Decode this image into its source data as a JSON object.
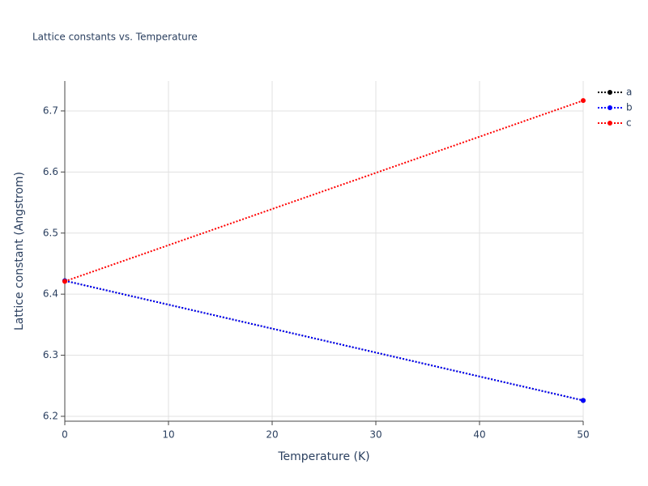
{
  "chart_data": {
    "type": "line",
    "title": "Lattice constants vs. Temperature",
    "x_label": "Temperature (K)",
    "y_label": "Lattice constant (Angstrom)",
    "x": [
      0,
      50
    ],
    "series": [
      {
        "name": "a",
        "color": "#000000",
        "values": [
          6.422,
          6.226
        ]
      },
      {
        "name": "b",
        "color": "#0000ff",
        "values": [
          6.422,
          6.226
        ]
      },
      {
        "name": "c",
        "color": "#ff0000",
        "values": [
          6.421,
          6.717
        ]
      }
    ],
    "xlim": [
      0,
      50
    ],
    "xticks": [
      0,
      10,
      20,
      30,
      40,
      50
    ],
    "ylim": [
      6.192,
      6.749
    ],
    "yticks": [
      6.2,
      6.3,
      6.4,
      6.5,
      6.6,
      6.7
    ],
    "grid": true,
    "legend": "right"
  }
}
